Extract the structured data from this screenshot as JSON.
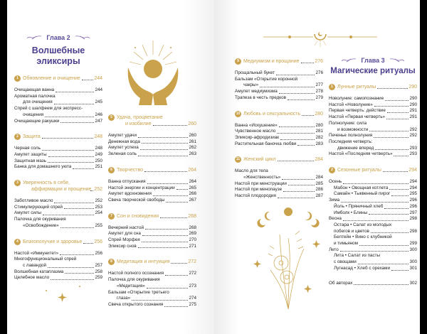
{
  "chapter2": {
    "label": "Глава 2",
    "title": [
      "Волшебные",
      "эликсиры"
    ]
  },
  "chapter3": {
    "label": "Глава 3",
    "title": [
      "Магические ритуалы"
    ]
  },
  "columns": [
    [
      {
        "num": "1",
        "title": [
          "Обновление и очищение"
        ],
        "page": "244",
        "items": [
          {
            "l": [
              "Очищающая ванна"
            ],
            "p": "244"
          },
          {
            "l": [
              "Ароматная палочка",
              "для очищения"
            ],
            "p": "245"
          },
          {
            "l": [
              "Спрей с шалфеем для экспресс-",
              "очищения"
            ],
            "p": "246"
          },
          {
            "l": [
              "Очищающие ракушки"
            ],
            "p": "247"
          }
        ]
      },
      {
        "num": "2",
        "title": [
          "Защита"
        ],
        "page": "248",
        "items": [
          {
            "l": [
              "Черная соль"
            ],
            "p": "248"
          },
          {
            "l": [
              "Амулет защиты"
            ],
            "p": "249"
          },
          {
            "l": [
              "Защитная мазь"
            ],
            "p": "250"
          },
          {
            "l": [
              "Банка для домашнего уюта"
            ],
            "p": "251"
          }
        ]
      },
      {
        "num": "3",
        "title": [
          "Уверенность в себе,",
          "аффирмации и прощение"
        ],
        "page": "252",
        "items": [
          {
            "l": [
              "Заботливое масло"
            ],
            "p": "252"
          },
          {
            "l": [
              "Стимулирующий спрей"
            ],
            "p": "253"
          },
          {
            "l": [
              "Амулет силы"
            ],
            "p": "254"
          },
          {
            "l": [
              "Палочка для окуривания",
              "«Освобождение»"
            ],
            "p": "255"
          }
        ]
      },
      {
        "num": "4",
        "title": [
          "Благополучие и здоровье"
        ],
        "page": "256",
        "items": [
          {
            "l": [
              "Настой «Иммунитет»"
            ],
            "p": "256"
          },
          {
            "l": [
              "Многофункциональный спрей",
              "с лавандой"
            ],
            "p": "257"
          },
          {
            "l": [
              "Волшебная катаплазма"
            ],
            "p": "258"
          },
          {
            "l": [
              "Целебное масло"
            ],
            "p": "259"
          }
        ]
      }
    ],
    [
      {
        "num": "5",
        "title": [
          "Удача, процветание",
          "и изобилие"
        ],
        "page": "260",
        "items": [
          {
            "l": [
              "Амулет удачи"
            ],
            "p": "260"
          },
          {
            "l": [
              "Денежная вода"
            ],
            "p": "261"
          },
          {
            "l": [
              "Амулет успеха"
            ],
            "p": "262"
          },
          {
            "l": [
              "Зеленая соль"
            ],
            "p": "263"
          }
        ]
      },
      {
        "num": "6",
        "title": [
          "Творчество"
        ],
        "page": "264",
        "items": [
          {
            "l": [
              "Ванна отпускания"
            ],
            "p": "264"
          },
          {
            "l": [
              "Настой энергии и концентрации"
            ],
            "p": "265"
          },
          {
            "l": [
              "Амулет вдохновения"
            ],
            "p": "266"
          },
          {
            "l": [
              "Свеча творческой свободы"
            ],
            "p": "267"
          }
        ]
      },
      {
        "num": "7",
        "title": [
          "Сон и сновидения"
        ],
        "page": "268",
        "items": [
          {
            "l": [
              "Вечерний настой"
            ],
            "p": "268"
          },
          {
            "l": [
              "Амулет для сна"
            ],
            "p": "269"
          },
          {
            "l": [
              "Спрей Морфея"
            ],
            "p": "270"
          },
          {
            "l": [
              "Эликсир снов"
            ],
            "p": "271"
          }
        ]
      },
      {
        "num": "8",
        "title": [
          "Медитация и интуиция"
        ],
        "page": "272",
        "items": [
          {
            "l": [
              "Настой полного осознания"
            ],
            "p": "272"
          },
          {
            "l": [
              "Палочка для окуривания",
              "«Медитация»"
            ],
            "p": "273"
          },
          {
            "l": [
              "Бальзам «Открытие третьего",
              "глаза»"
            ],
            "p": "274"
          },
          {
            "l": [
              "Свеча открытого сознания"
            ],
            "p": "275"
          }
        ]
      }
    ],
    [
      {
        "num": "9",
        "title": [
          "Медиумизм и прощание"
        ],
        "page": "276",
        "items": [
          {
            "l": [
              "Прощальный букет"
            ],
            "p": "276"
          },
          {
            "l": [
              "Бальзам «Открытие коронной",
              "чакры»"
            ],
            "p": "277"
          },
          {
            "l": [
              "Амулет медиумизма"
            ],
            "p": "278"
          },
          {
            "l": [
              "Трапеза в честь предков"
            ],
            "p": "279"
          }
        ]
      },
      {
        "num": "10",
        "title": [
          "Любовь и сексуальность"
        ],
        "page": "280",
        "items": [
          {
            "l": [
              "Ванна «Искушение»"
            ],
            "p": "280"
          },
          {
            "l": [
              "Чувственное масло"
            ],
            "p": "281"
          },
          {
            "l": [
              "Эликсир-афродизиак"
            ],
            "p": "282"
          },
          {
            "l": [
              "Растительная баночка любви"
            ],
            "p": "283"
          }
        ]
      },
      {
        "num": "11",
        "title": [
          "Женский цикл"
        ],
        "page": "284",
        "items": [
          {
            "l": [
              "Масло для тела",
              "«Женственность»"
            ],
            "p": "284"
          },
          {
            "l": [
              "Настой при менструации"
            ],
            "p": "285"
          },
          {
            "l": [
              "Настой при менопаузе"
            ],
            "p": "286"
          },
          {
            "l": [
              "Настой плодородия"
            ],
            "p": "287"
          }
        ]
      }
    ],
    [
      {
        "num": "1",
        "title": [
          "Лунные ритуалы"
        ],
        "page": "290",
        "items": [
          {
            "l": [
              "Новолуние: самопознание"
            ],
            "p": "290"
          },
          {
            "l": [
              "Настой «Новолуние»"
            ],
            "p": "290"
          },
          {
            "l": [
              "Первая четверть: действие"
            ],
            "p": "291"
          },
          {
            "l": [
              "Настой «Первая четверть»"
            ],
            "p": "291"
          },
          {
            "l": [
              "Полнолуние: сила",
              "и возможности"
            ],
            "p": "292"
          },
          {
            "l": [
              "Печенье полнолуния"
            ],
            "p": "292"
          },
          {
            "l": [
              "Последняя четверть:",
              "движение вперед"
            ],
            "p": "293"
          },
          {
            "l": [
              "Настой «Последняя четверть»"
            ],
            "p": "293"
          }
        ]
      },
      {
        "num": "2",
        "title": [
          "Сезонные ритуалы"
        ],
        "page": "294",
        "items": [
          {
            "l": [
              "Осень"
            ],
            "p": "294"
          },
          {
            "l": [
              "Мабон • Овощная котлета"
            ],
            "p": "294",
            "sub": true
          },
          {
            "l": [
              "Самайн • Тыквенный пирог"
            ],
            "p": "295",
            "sub": true
          },
          {
            "l": [
              "Зима"
            ],
            "p": "296"
          },
          {
            "l": [
              "Йоль • Пряничный хлеб"
            ],
            "p": "296",
            "sub": true
          },
          {
            "l": [
              "Имболк • Блины"
            ],
            "p": "297",
            "sub": true
          },
          {
            "l": [
              "Весна"
            ],
            "p": "298"
          },
          {
            "l": [
              "Остара • Салат из молодых",
              "побегов и цветов"
            ],
            "p": "298",
            "sub": true
          },
          {
            "l": [
              "Белтейн • Вино с клубникой",
              "и тимьяном"
            ],
            "p": "299",
            "sub": true
          },
          {
            "l": [
              "Лето"
            ],
            "p": "300"
          },
          {
            "l": [
              "Лита • Салат из пасты",
              "с овощами"
            ],
            "p": "300",
            "sub": true
          },
          {
            "l": [
              "Лугнасад • Хлеб с орехами"
            ],
            "p": "301",
            "sub": true
          }
        ]
      }
    ]
  ],
  "authors": {
    "l": [
      "Об авторах"
    ],
    "p": "302"
  },
  "colors": {
    "gold": "#c9a24b",
    "purple": "#4a3f8c"
  }
}
